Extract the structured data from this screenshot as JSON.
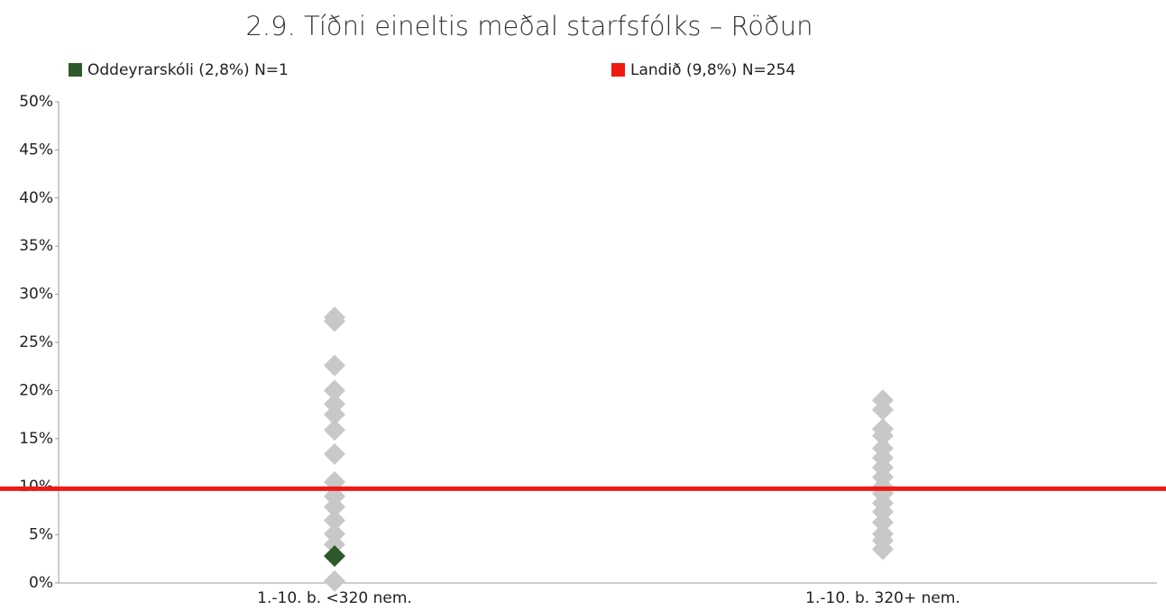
{
  "chart_data": {
    "type": "strip",
    "title": "2.9. Tíðni eineltis meðal starfsfólks – Röðun",
    "categories": [
      "1.-10. b. <320 nem.",
      "1.-10. b. 320+ nem."
    ],
    "ylim": [
      0,
      50
    ],
    "yticks": [
      {
        "value": 0,
        "label": "0%"
      },
      {
        "value": 5,
        "label": "5%"
      },
      {
        "value": 10,
        "label": "10%"
      },
      {
        "value": 15,
        "label": "15%"
      },
      {
        "value": 20,
        "label": "20%"
      },
      {
        "value": 25,
        "label": "25%"
      },
      {
        "value": 30,
        "label": "30%"
      },
      {
        "value": 35,
        "label": "35%"
      },
      {
        "value": 40,
        "label": "40%"
      },
      {
        "value": 45,
        "label": "45%"
      },
      {
        "value": 50,
        "label": "50%"
      }
    ],
    "series": [
      {
        "color": "#c8c8c8",
        "values": [
          [
            27.6,
            27.2,
            22.6,
            20,
            18.6,
            17.5,
            15.9,
            13.4,
            10.5,
            9,
            7.9,
            6.5,
            5.1,
            4,
            0.2
          ],
          [
            19,
            18,
            16,
            15.3,
            14,
            13,
            12,
            11,
            10,
            9.3,
            8.3,
            7.4,
            6.3,
            5.1,
            4.4,
            3.5
          ]
        ]
      },
      {
        "name": "Oddeyrarskóli (2,8%) N=1",
        "color": "#2d5a2d",
        "values": [
          2.8,
          null
        ]
      },
      {
        "name": "Landið (9,8%) N=254",
        "color": "#ee1a12",
        "value": 9.8
      }
    ]
  }
}
